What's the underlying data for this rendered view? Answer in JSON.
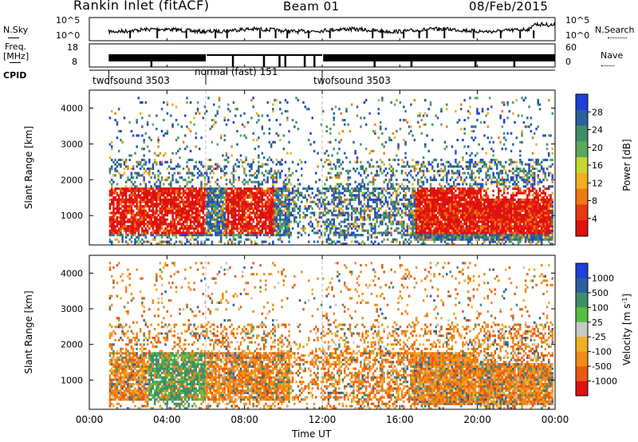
{
  "header": {
    "site_title": "Rankin Inlet (fitACF)",
    "beam_label": "Beam 01",
    "date": "08/Feb/2015"
  },
  "colors": {
    "power_scale": [
      "#1f3fd8",
      "#2b5f9e",
      "#3f8e6a",
      "#5aa85a",
      "#c7d630",
      "#f0b020",
      "#f07a10",
      "#e83a10",
      "#e01010"
    ],
    "velocity_scale": [
      "#1f3fd8",
      "#2b5f9e",
      "#3f8e6a",
      "#55c040",
      "#c8c8c8",
      "#f0b020",
      "#f08c18",
      "#e85a10",
      "#e01010"
    ]
  },
  "chart_data": [
    {
      "type": "line",
      "panel": "noise",
      "left_label": "N.Sky",
      "right_label": "N.Search",
      "left_ticks": [
        "10^5",
        "10^0"
      ],
      "right_ticks": [
        "10^5",
        "10^0"
      ],
      "yscale": "log"
    },
    {
      "type": "line",
      "panel": "frequency",
      "left_label": "Freq.",
      "left_unit": "[MHz]",
      "left_ticks": [
        "18",
        "8"
      ],
      "ylim_left": [
        8,
        18
      ],
      "right_label": "Nave",
      "right_ticks": [
        "60",
        "0"
      ],
      "ylim_right": [
        0,
        60
      ]
    },
    {
      "type": "table",
      "panel": "cpid",
      "label": "CPID",
      "segments": [
        {
          "name": "twofsound 3503",
          "start": "01:00",
          "end": "06:00"
        },
        {
          "name": "normal (fast) 151",
          "start": "06:00",
          "end": "12:00"
        },
        {
          "name": "twofsound 3503",
          "start": "12:00",
          "end": "24:00"
        }
      ]
    },
    {
      "type": "heatmap",
      "panel": "power",
      "ylabel": "Slant Range [km]",
      "yticks": [
        "1000",
        "2000",
        "3000",
        "4000"
      ],
      "ylim": [
        180,
        4500
      ],
      "colorbar_label": "Power [dB]",
      "colorbar_ticks": [
        "28",
        "24",
        "20",
        "16",
        "12",
        "8",
        "4"
      ],
      "zlim": [
        0,
        30
      ]
    },
    {
      "type": "heatmap",
      "panel": "velocity",
      "ylabel": "Slant Range [km]",
      "yticks": [
        "1000",
        "2000",
        "3000",
        "4000"
      ],
      "ylim": [
        180,
        4500
      ],
      "colorbar_label": "Velocity [m s",
      "colorbar_label_sup": "-1",
      "colorbar_label_end": "]",
      "colorbar_ticks": [
        "1000",
        "500",
        "100",
        "25",
        "-25",
        "-100",
        "-500",
        "-1000"
      ],
      "xlabel": "Time UT",
      "xticks": [
        "00:00",
        "04:00",
        "08:00",
        "12:00",
        "16:00",
        "20:00",
        "00:00"
      ],
      "xlim": [
        0,
        24
      ]
    }
  ]
}
